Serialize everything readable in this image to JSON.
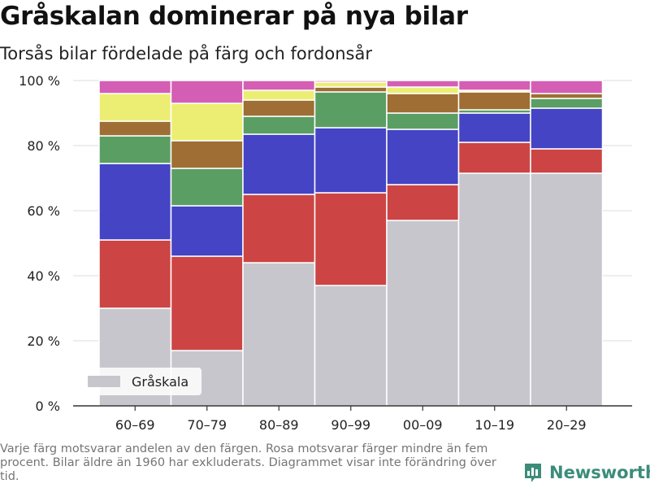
{
  "title": "Gråskalan dominerar på nya bilar",
  "subtitle": "Torsås bilar fördelade på färg och fordonsår",
  "footnote": "Varje färg motsvarar andelen av den färgen. Rosa motsvarar färger mindre än fem procent. Bilar äldre än 1960 har exkluderats. Diagrammet visar inte förändring över tid.",
  "brand": {
    "name": "Newsworthy",
    "icon": "bar-chart-logo-icon",
    "color": "#3c8c7a"
  },
  "chart_data": {
    "type": "bar",
    "stacked": true,
    "categories": [
      "60–69",
      "70–79",
      "80–89",
      "90–99",
      "00–09",
      "10–19",
      "20–29"
    ],
    "y_ticks": [
      "0 %",
      "20 %",
      "40 %",
      "60 %",
      "80 %",
      "100 %"
    ],
    "ylim": [
      0,
      100
    ],
    "grid": true,
    "legend": {
      "position": "bottom-left",
      "entries": [
        "Gråskala"
      ]
    },
    "series": [
      {
        "name": "Gråskala",
        "color": "#c8c6cd",
        "values": [
          30,
          17,
          44,
          37,
          57,
          71.5,
          71.5
        ]
      },
      {
        "color": "#cc4444",
        "values": [
          21,
          29,
          21,
          28.5,
          11,
          9.5,
          7.5
        ]
      },
      {
        "color": "#4444c4",
        "values": [
          23.5,
          15.5,
          18.5,
          20,
          17,
          9,
          12.5
        ]
      },
      {
        "color": "#5a9e64",
        "values": [
          8.5,
          11.5,
          5.5,
          11,
          5,
          1,
          3
        ]
      },
      {
        "color": "#9e6e34",
        "values": [
          4.5,
          8.5,
          5,
          1.5,
          6,
          5.5,
          1.5
        ]
      },
      {
        "color": "#ecee74",
        "values": [
          8.5,
          11.5,
          3,
          1.5,
          2,
          0.5,
          0
        ]
      },
      {
        "color": "#d45eb4",
        "values": [
          4,
          7,
          3,
          0.5,
          2,
          3,
          4
        ]
      }
    ]
  }
}
